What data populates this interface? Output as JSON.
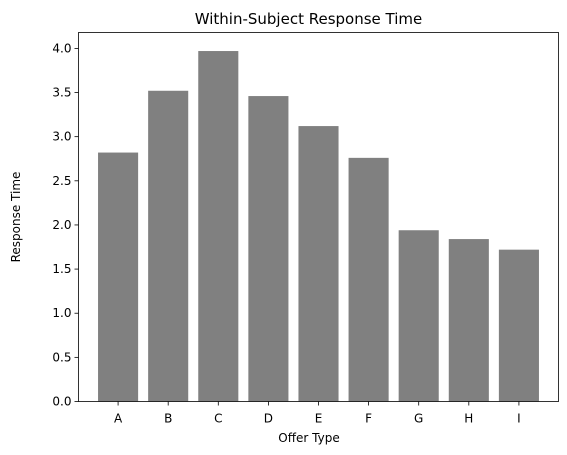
{
  "chart_data": {
    "type": "bar",
    "title": "Within-Subject Response Time",
    "xlabel": "Offer Type",
    "ylabel": "Response Time",
    "categories": [
      "A",
      "B",
      "C",
      "D",
      "E",
      "F",
      "G",
      "H",
      "I"
    ],
    "values": [
      2.82,
      3.52,
      3.97,
      3.46,
      3.12,
      2.76,
      1.94,
      1.84,
      1.72
    ],
    "ylim": [
      0,
      4.18
    ],
    "yticks": [
      "0.0",
      "0.5",
      "1.0",
      "1.5",
      "2.0",
      "2.5",
      "3.0",
      "3.5",
      "4.0"
    ],
    "bar_color": "#808080",
    "grid": false,
    "legend": "none"
  }
}
